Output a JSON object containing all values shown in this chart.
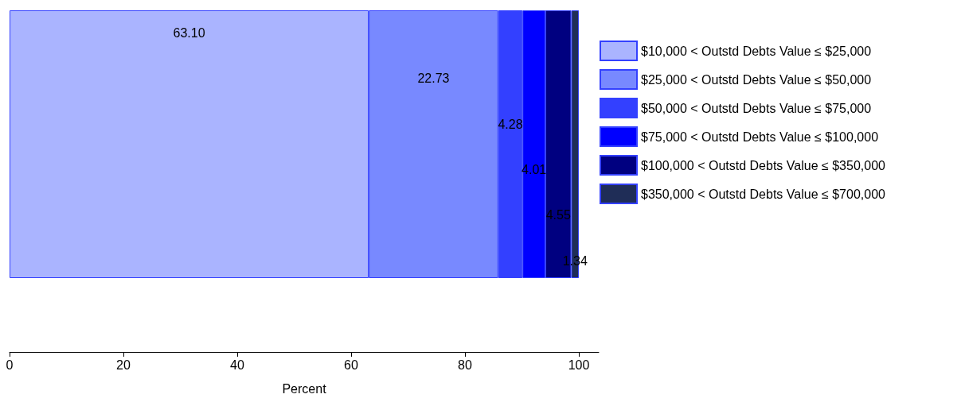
{
  "chart_data": {
    "type": "bar",
    "orientation": "horizontal",
    "stacked": true,
    "categories": [
      null
    ],
    "xlabel": "Percent",
    "xlim": [
      0,
      103.5
    ],
    "xticks": [
      0,
      20,
      40,
      60,
      80,
      100
    ],
    "grid": false,
    "legend": "right",
    "series": [
      {
        "name": "$10,000 < Outstd Debts Value ≤ $25,000",
        "color": "#aab4ff",
        "values": [
          63.1
        ],
        "value_labels": [
          "63.10"
        ]
      },
      {
        "name": "$25,000 < Outstd Debts Value ≤ $50,000",
        "color": "#7889ff",
        "values": [
          22.73
        ],
        "value_labels": [
          "22.73"
        ]
      },
      {
        "name": "$50,000 < Outstd Debts Value ≤ $75,000",
        "color": "#3340ff",
        "values": [
          4.28
        ],
        "value_labels": [
          "4.28"
        ]
      },
      {
        "name": "$75,000 < Outstd Debts Value ≤ $100,000",
        "color": "#0000ff",
        "values": [
          4.01
        ],
        "value_labels": [
          "4.01"
        ]
      },
      {
        "name": "$100,000 < Outstd Debts Value ≤ $350,000",
        "color": "#000080",
        "values": [
          4.55
        ],
        "value_labels": [
          "4.55"
        ]
      },
      {
        "name": "$350,000 < Outstd Debts Value ≤ $700,000",
        "color": "#1f2d57",
        "values": [
          1.34
        ],
        "value_labels": [
          "1.34"
        ]
      }
    ]
  }
}
